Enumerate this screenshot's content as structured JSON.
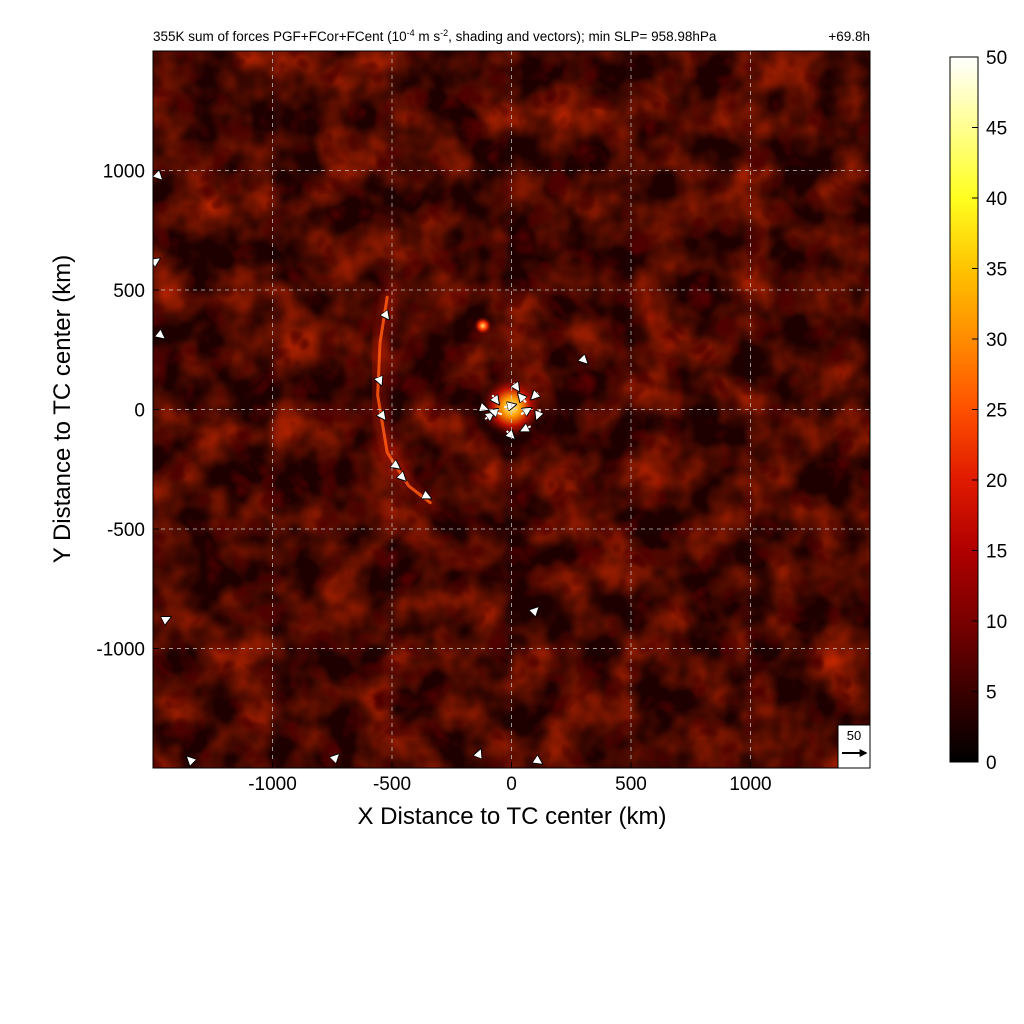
{
  "chart_data": {
    "type": "heatmap",
    "title": {
      "prefix": "355K sum of forces PGF+FCor+FCent (10",
      "exp1": "-4",
      "middle": " m s",
      "exp2": "-2",
      "suffix": ", shading and vectors); min SLP= 958.98hPa",
      "time": "+69.8h"
    },
    "xlabel": "X Distance to TC center (km)",
    "ylabel": "Y Distance to TC center (km)",
    "xlim": [
      -1500,
      1500
    ],
    "ylim": [
      -1500,
      1500
    ],
    "x_ticks": [
      -1000,
      -500,
      0,
      500,
      1000
    ],
    "y_ticks": [
      1000,
      500,
      0,
      -500,
      -1000
    ],
    "grid": true,
    "colorbar": {
      "min": 0,
      "max": 50,
      "ticks": [
        50,
        45,
        40,
        35,
        30,
        25,
        20,
        15,
        10,
        5,
        0
      ],
      "colormap": [
        "#000000",
        "#3a0000",
        "#7a0000",
        "#b00000",
        "#e01a00",
        "#ff5000",
        "#ff8c00",
        "#ffc400",
        "#ffff20",
        "#ffff90",
        "#ffffff"
      ]
    },
    "reference_vector": {
      "label": "50",
      "magnitude": 50
    },
    "features": {
      "spiral_band": [
        {
          "x": -520,
          "y": 470
        },
        {
          "x": -550,
          "y": 280
        },
        {
          "x": -560,
          "y": 60
        },
        {
          "x": -520,
          "y": -180
        },
        {
          "x": -430,
          "y": -320
        },
        {
          "x": -340,
          "y": -390
        }
      ],
      "core_center": {
        "x": 0,
        "y": 10
      },
      "core_radius_km": 130,
      "hot_spot": {
        "x": -120,
        "y": 350
      },
      "vectors": [
        {
          "x": -30,
          "y": 10,
          "u": 18,
          "v": 4
        },
        {
          "x": 60,
          "y": 30,
          "u": -12,
          "v": 14
        },
        {
          "x": 120,
          "y": 0,
          "u": -6,
          "v": -16
        },
        {
          "x": 80,
          "y": -70,
          "u": -16,
          "v": -8
        },
        {
          "x": -20,
          "y": -90,
          "u": 12,
          "v": -12
        },
        {
          "x": -110,
          "y": -40,
          "u": 14,
          "v": 10
        },
        {
          "x": -80,
          "y": 60,
          "u": 10,
          "v": -14
        },
        {
          "x": 10,
          "y": 110,
          "u": 8,
          "v": -12
        },
        {
          "x": -40,
          "y": -20,
          "u": -20,
          "v": 6
        },
        {
          "x": 40,
          "y": -20,
          "u": 16,
          "v": 10
        },
        {
          "x": 110,
          "y": 70,
          "u": -10,
          "v": -10
        },
        {
          "x": -130,
          "y": 10,
          "u": 12,
          "v": -4
        },
        {
          "x": -530,
          "y": 400,
          "u": 6,
          "v": -8
        },
        {
          "x": -555,
          "y": 130,
          "u": 4,
          "v": -10
        },
        {
          "x": -545,
          "y": -20,
          "u": 6,
          "v": -8
        },
        {
          "x": -490,
          "y": -230,
          "u": 8,
          "v": -6
        },
        {
          "x": -360,
          "y": -360,
          "u": 8,
          "v": -4
        },
        {
          "x": -460,
          "y": -280,
          "u": 6,
          "v": -6
        },
        {
          "x": 300,
          "y": 210,
          "u": 6,
          "v": -6
        },
        {
          "x": 100,
          "y": -840,
          "u": 4,
          "v": 4
        },
        {
          "x": -1480,
          "y": 320,
          "u": 10,
          "v": -8
        },
        {
          "x": -1480,
          "y": 980,
          "u": 6,
          "v": -6
        },
        {
          "x": -1490,
          "y": 620,
          "u": 6,
          "v": 4
        },
        {
          "x": -1450,
          "y": -880,
          "u": 8,
          "v": 4
        },
        {
          "x": -140,
          "y": -1450,
          "u": 4,
          "v": 10
        },
        {
          "x": -1340,
          "y": -1470,
          "u": -6,
          "v": 6
        },
        {
          "x": -740,
          "y": -1460,
          "u": 6,
          "v": 6
        },
        {
          "x": 110,
          "y": -1470,
          "u": 6,
          "v": -4
        }
      ]
    }
  }
}
